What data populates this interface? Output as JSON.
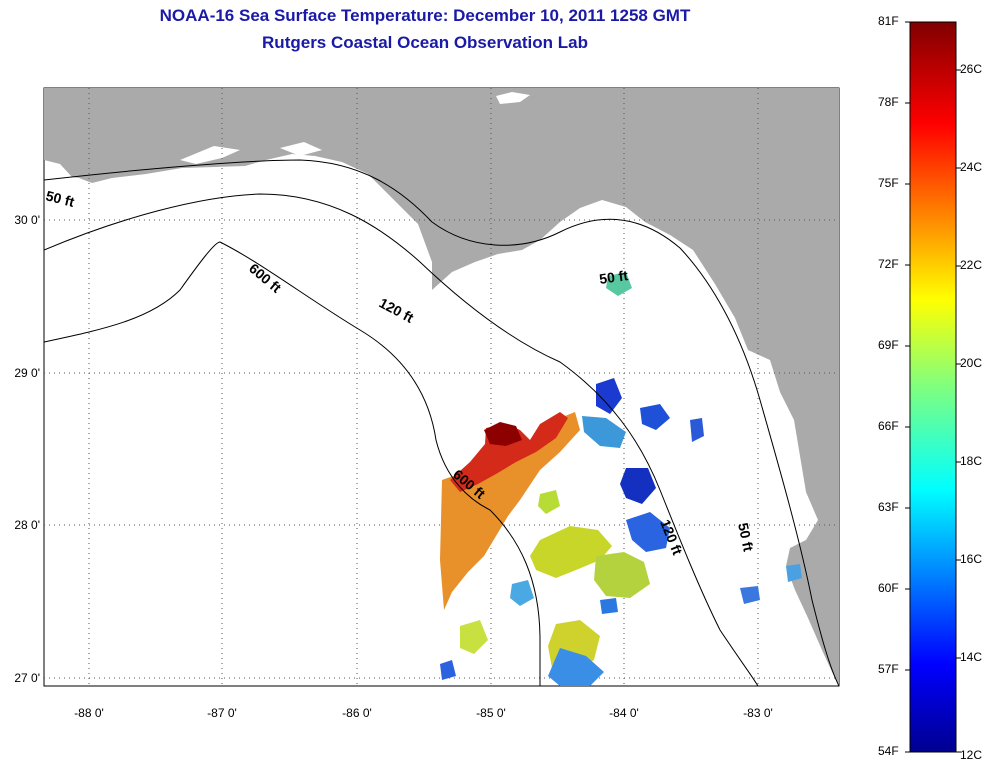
{
  "title": {
    "line1": "NOAA-16 Sea Surface Temperature:  December 10, 2011 1258 GMT",
    "line2": "Rutgers Coastal Ocean Observation Lab"
  },
  "map": {
    "lon_ticks": [
      "-88 0'",
      "-87 0'",
      "-86 0'",
      "-85 0'",
      "-84 0'",
      "-83 0'"
    ],
    "lat_ticks": [
      "30 0'",
      "29 0'",
      "28 0'",
      "27 0'"
    ],
    "contours": [
      "50 ft",
      "600 ft",
      "120 ft",
      "50 ft",
      "600 ft",
      "120 ft",
      "50 ft"
    ],
    "colors": {
      "land": "#aaaaaa",
      "ocean": "#ffffff",
      "contour": "#000000",
      "grid": "#555555"
    }
  },
  "colorbar": {
    "fahrenheit": [
      "81F",
      "78F",
      "75F",
      "72F",
      "69F",
      "66F",
      "63F",
      "60F",
      "57F",
      "54F"
    ],
    "celsius": [
      "26C",
      "24C",
      "22C",
      "20C",
      "18C",
      "16C",
      "14C",
      "12C"
    ],
    "range_f": [
      54,
      81
    ]
  }
}
